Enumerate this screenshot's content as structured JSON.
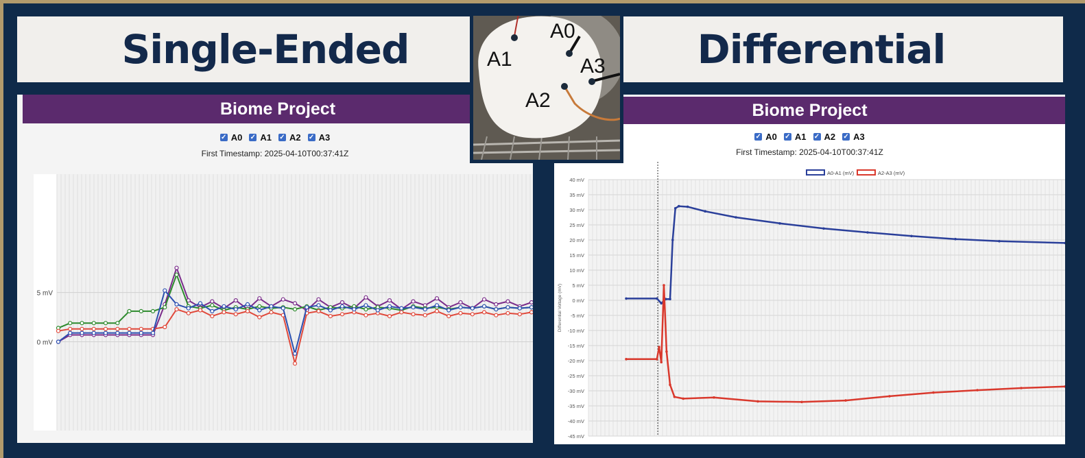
{
  "banners": {
    "left_title": "Single-Ended",
    "right_title": "Differential"
  },
  "photo": {
    "labels": [
      "A0",
      "A1",
      "A2",
      "A3"
    ]
  },
  "left_panel": {
    "title": "Biome Project",
    "checkboxes": [
      {
        "label": "A0",
        "checked": true
      },
      {
        "label": "A1",
        "checked": true
      },
      {
        "label": "A2",
        "checked": true
      },
      {
        "label": "A3",
        "checked": true
      }
    ],
    "timestamp": "First Timestamp: 2025-04-10T00:37:41Z"
  },
  "right_panel": {
    "title": "Biome Project",
    "checkboxes": [
      {
        "label": "A0",
        "checked": true
      },
      {
        "label": "A1",
        "checked": true
      },
      {
        "label": "A2",
        "checked": true
      },
      {
        "label": "A3",
        "checked": true
      }
    ],
    "timestamp": "First Timestamp: 2025-04-10T00:37:41Z"
  },
  "colors": {
    "banner_text": "#13294b",
    "panel_title_bg": "#5b2a6d",
    "background": "#0f2a4a",
    "frame": "#b29a6c"
  },
  "chart_data": [
    {
      "type": "line",
      "title": "Single-Ended",
      "xlabel": "",
      "ylabel": "",
      "ylim": [
        -9,
        17
      ],
      "y_ticks": [
        "0 mV",
        "5 mV"
      ],
      "y_tick_values": [
        0,
        5
      ],
      "legend": [
        "A0",
        "A1",
        "A2",
        "A3"
      ],
      "series": [
        {
          "name": "A0",
          "color": "#7a2c8a",
          "values": [
            0.0,
            0.7,
            0.7,
            0.7,
            0.7,
            0.7,
            0.7,
            0.7,
            0.7,
            3.8,
            7.5,
            4.2,
            3.5,
            4.1,
            3.4,
            4.2,
            3.3,
            4.4,
            3.6,
            4.3,
            3.9,
            3.2,
            4.3,
            3.5,
            4.0,
            3.4,
            4.5,
            3.6,
            4.2,
            3.3,
            4.1,
            3.7,
            4.4,
            3.5,
            4.0,
            3.4,
            4.3,
            3.8,
            4.1,
            3.6,
            4.0
          ]
        },
        {
          "name": "A1",
          "color": "#2c8a2c",
          "values": [
            1.4,
            1.9,
            1.9,
            1.9,
            1.9,
            1.9,
            3.1,
            3.1,
            3.1,
            3.5,
            6.8,
            3.6,
            3.4,
            3.7,
            3.2,
            3.5,
            3.3,
            3.6,
            3.4,
            3.5,
            3.3,
            3.6,
            3.2,
            3.5,
            3.4,
            3.6,
            3.3,
            3.5,
            3.4,
            3.2,
            3.6,
            3.4,
            3.5,
            3.3,
            3.5,
            3.4,
            3.6,
            3.3,
            3.5,
            3.4,
            3.5
          ]
        },
        {
          "name": "A2",
          "color": "#e0483a",
          "values": [
            1.1,
            1.3,
            1.3,
            1.3,
            1.3,
            1.3,
            1.3,
            1.3,
            1.3,
            1.5,
            3.3,
            2.9,
            3.2,
            2.6,
            3.0,
            2.8,
            3.1,
            2.5,
            3.0,
            2.7,
            -2.2,
            2.9,
            3.1,
            2.6,
            2.8,
            3.0,
            2.7,
            2.9,
            2.6,
            3.0,
            2.8,
            2.7,
            3.1,
            2.6,
            2.9,
            2.8,
            3.0,
            2.7,
            2.9,
            2.8,
            3.0
          ]
        },
        {
          "name": "A3",
          "color": "#2b4fb0",
          "values": [
            0.0,
            0.9,
            0.9,
            0.9,
            0.9,
            0.9,
            0.9,
            0.9,
            0.9,
            5.2,
            3.8,
            3.4,
            3.9,
            3.1,
            3.6,
            3.3,
            3.8,
            3.2,
            3.6,
            3.4,
            -1.2,
            3.5,
            3.7,
            3.2,
            3.6,
            3.3,
            3.7,
            3.2,
            3.6,
            3.4,
            3.5,
            3.3,
            3.7,
            3.2,
            3.5,
            3.4,
            3.6,
            3.3,
            3.5,
            3.4,
            3.5
          ]
        }
      ]
    },
    {
      "type": "line",
      "title": "Differential",
      "xlabel": "",
      "ylabel": "Differential Voltage (mV)",
      "ylim": [
        -45,
        40
      ],
      "y_ticks": [
        40,
        35,
        30,
        25,
        20,
        15,
        10,
        5,
        0,
        -5,
        -10,
        -15,
        -20,
        -25,
        -30,
        -35,
        -40,
        -45
      ],
      "y_tick_suffix": " mV",
      "legend": [
        "A0-A1 (mV)",
        "A2-A3 (mV)"
      ],
      "series": [
        {
          "name": "A0-A1 (mV)",
          "color": "#2a3f9a",
          "points": [
            [
              0,
              0.6
            ],
            [
              7,
              0.6
            ],
            [
              8,
              -1.0
            ],
            [
              9,
              0.4
            ],
            [
              10,
              0.4
            ],
            [
              10.6,
              20
            ],
            [
              11.2,
              30.5
            ],
            [
              12,
              31.2
            ],
            [
              14,
              31
            ],
            [
              18,
              29.5
            ],
            [
              25,
              27.5
            ],
            [
              35,
              25.5
            ],
            [
              45,
              23.8
            ],
            [
              55,
              22.5
            ],
            [
              65,
              21.3
            ],
            [
              75,
              20.3
            ],
            [
              85,
              19.6
            ],
            [
              100,
              19
            ]
          ]
        },
        {
          "name": "A2-A3 (mV)",
          "color": "#d9382c",
          "points": [
            [
              0,
              -19.5
            ],
            [
              7,
              -19.5
            ],
            [
              7.5,
              -15.5
            ],
            [
              8,
              -20.5
            ],
            [
              8.6,
              5
            ],
            [
              9.2,
              -17
            ],
            [
              10,
              -28
            ],
            [
              11,
              -32
            ],
            [
              13,
              -32.6
            ],
            [
              20,
              -32.2
            ],
            [
              30,
              -33.5
            ],
            [
              40,
              -33.7
            ],
            [
              50,
              -33.2
            ],
            [
              60,
              -31.8
            ],
            [
              70,
              -30.6
            ],
            [
              80,
              -29.8
            ],
            [
              90,
              -29.1
            ],
            [
              100,
              -28.6
            ]
          ]
        }
      ],
      "marker_line_at_x": 7.2
    }
  ]
}
